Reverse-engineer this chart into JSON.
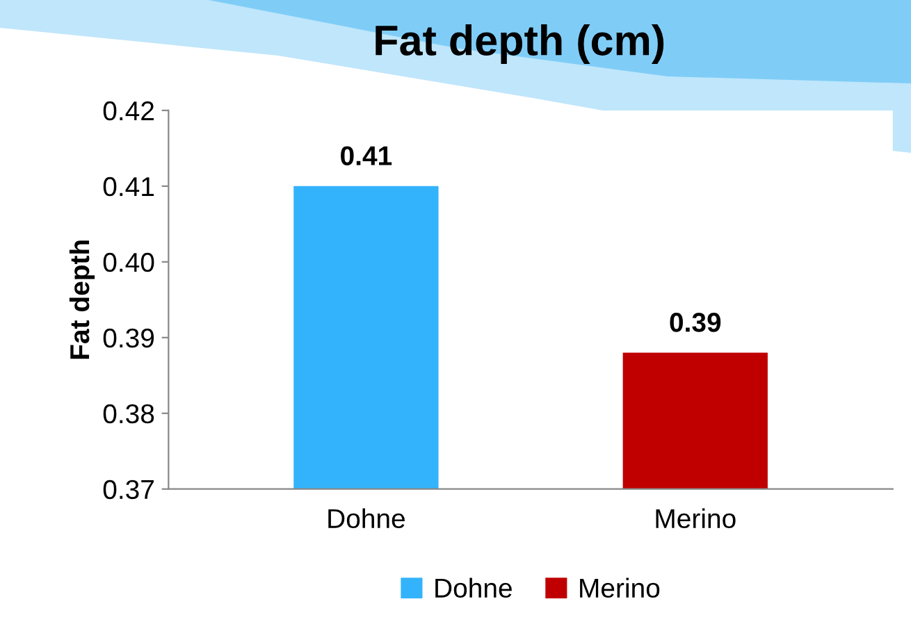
{
  "chart_data": {
    "type": "bar",
    "title": "Fat depth (cm)",
    "ylabel": "Fat depth",
    "categories": [
      "Dohne",
      "Merino"
    ],
    "series": [
      {
        "name": "Dohne",
        "color": "#33b3fb",
        "values": [
          0.41,
          null
        ],
        "value_labels": [
          "0.41",
          null
        ]
      },
      {
        "name": "Merino",
        "color": "#c00000",
        "values": [
          null,
          0.388
        ],
        "value_labels": [
          null,
          "0.39"
        ]
      }
    ],
    "ylim": [
      0.37,
      0.42
    ],
    "yticks": [
      0.37,
      0.38,
      0.39,
      {
        "value": 0.4,
        "label": "0.40"
      },
      0.41,
      0.42
    ],
    "grid": false,
    "legend": "bottom"
  }
}
